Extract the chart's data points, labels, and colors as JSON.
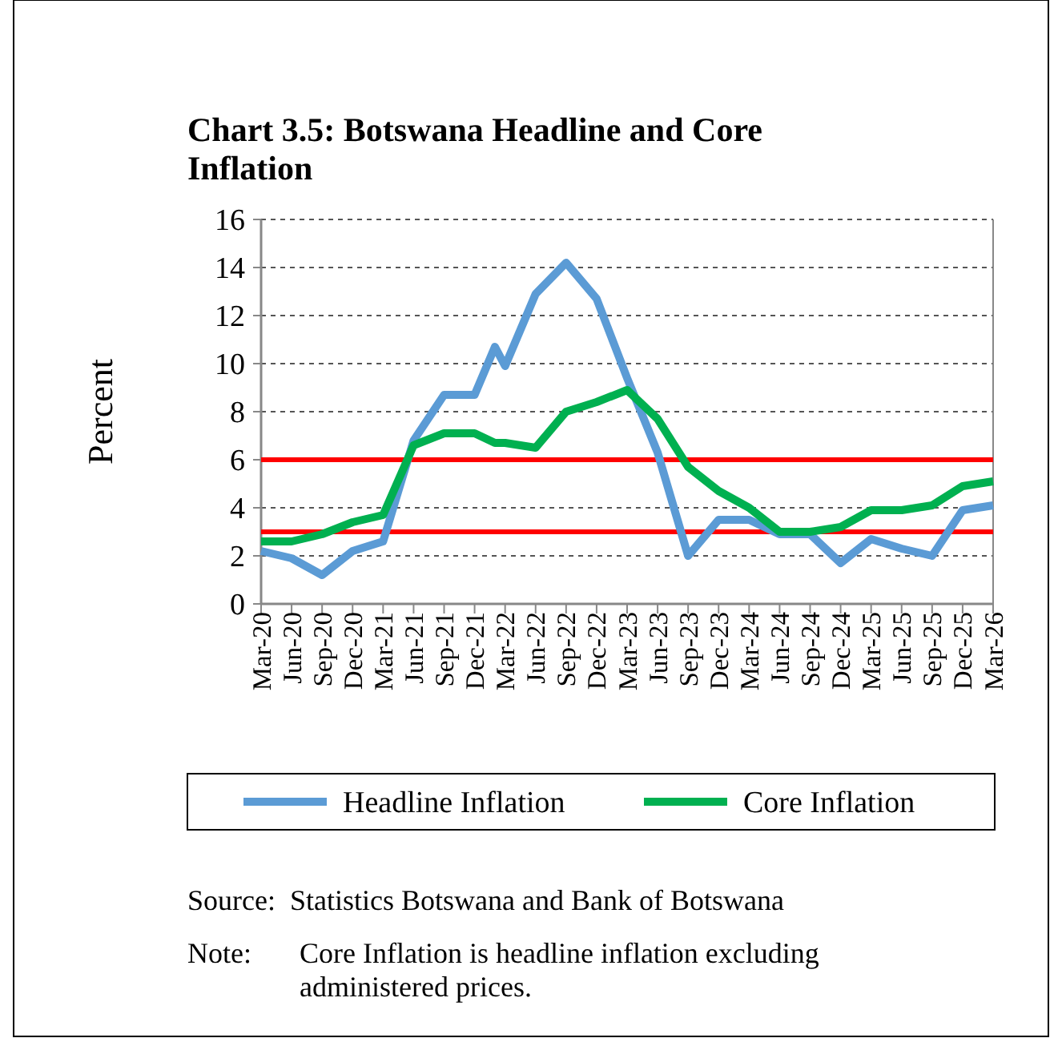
{
  "chart_data": {
    "type": "line",
    "title": "Chart 3.5: Botswana Headline and Core Inflation",
    "ylabel": "Percent",
    "xlim": [
      "2020-03",
      "2026-03"
    ],
    "xticks": [
      {
        "value": "2020-03",
        "label": "Mar-20"
      },
      {
        "value": "2020-06",
        "label": "Jun-20"
      },
      {
        "value": "2020-09",
        "label": "Sep-20"
      },
      {
        "value": "2020-12",
        "label": "Dec-20"
      },
      {
        "value": "2021-03",
        "label": "Mar-21"
      },
      {
        "value": "2021-06",
        "label": "Jun-21"
      },
      {
        "value": "2021-09",
        "label": "Sep-21"
      },
      {
        "value": "2021-12",
        "label": "Dec-21"
      },
      {
        "value": "2022-03",
        "label": "Mar-22"
      },
      {
        "value": "2022-06",
        "label": "Jun-22"
      },
      {
        "value": "2022-09",
        "label": "Sep-22"
      },
      {
        "value": "2022-12",
        "label": "Dec-22"
      },
      {
        "value": "2023-03",
        "label": "Mar-23"
      },
      {
        "value": "2023-06",
        "label": "Jun-23"
      },
      {
        "value": "2023-09",
        "label": "Sep-23"
      },
      {
        "value": "2023-12",
        "label": "Dec-23"
      },
      {
        "value": "2024-03",
        "label": "Mar-24"
      },
      {
        "value": "2024-06",
        "label": "Jun-24"
      },
      {
        "value": "2024-09",
        "label": "Sep-24"
      },
      {
        "value": "2024-12",
        "label": "Dec-24"
      },
      {
        "value": "2025-03",
        "label": "Mar-25"
      },
      {
        "value": "2025-06",
        "label": "Jun-25"
      },
      {
        "value": "2025-09",
        "label": "Sep-25"
      },
      {
        "value": "2025-12",
        "label": "Dec-25"
      },
      {
        "value": "2026-03",
        "label": "Mar-26"
      }
    ],
    "ylim": [
      0,
      16
    ],
    "yticks": [
      0,
      2,
      4,
      6,
      8,
      10,
      12,
      14,
      16
    ],
    "grid": "y",
    "legend": "bottom",
    "marker": "none",
    "line_style": "solid",
    "x": [
      "2020-03",
      "2020-06",
      "2020-09",
      "2020-12",
      "2021-03",
      "2021-06",
      "2021-09",
      "2021-12",
      "2022-02",
      "2022-03",
      "2022-06",
      "2022-09",
      "2022-12",
      "2023-03",
      "2023-06",
      "2023-09",
      "2023-12",
      "2024-03",
      "2024-06",
      "2024-09",
      "2024-12",
      "2025-03",
      "2025-06",
      "2025-09",
      "2025-12",
      "2026-03"
    ],
    "series": [
      {
        "name": "Headline Inflation",
        "color": "#5b9bd5",
        "values": [
          2.2,
          1.9,
          1.2,
          2.2,
          2.6,
          6.8,
          8.7,
          8.7,
          10.7,
          9.9,
          12.9,
          14.2,
          12.7,
          9.4,
          6.3,
          2.0,
          3.5,
          3.5,
          2.9,
          2.9,
          1.7,
          2.7,
          2.3,
          2.0,
          3.9,
          4.1
        ]
      },
      {
        "name": "Core Inflation",
        "color": "#00b050",
        "values": [
          2.6,
          2.6,
          2.9,
          3.4,
          3.7,
          6.6,
          7.1,
          7.1,
          6.7,
          6.7,
          6.5,
          8.0,
          8.4,
          8.9,
          7.7,
          5.7,
          4.7,
          4.0,
          3.0,
          3.0,
          3.2,
          3.9,
          3.9,
          4.1,
          4.9,
          5.1
        ]
      }
    ],
    "ref_lines": [
      {
        "axis": "y",
        "value": 3,
        "color": "#ff0000"
      },
      {
        "axis": "y",
        "value": 6,
        "color": "#ff0000"
      }
    ],
    "annotations": [
      "Source: Statistics Botswana and Bank of Botswana",
      "Note: Core Inflation is headline inflation excluding administered prices."
    ]
  }
}
